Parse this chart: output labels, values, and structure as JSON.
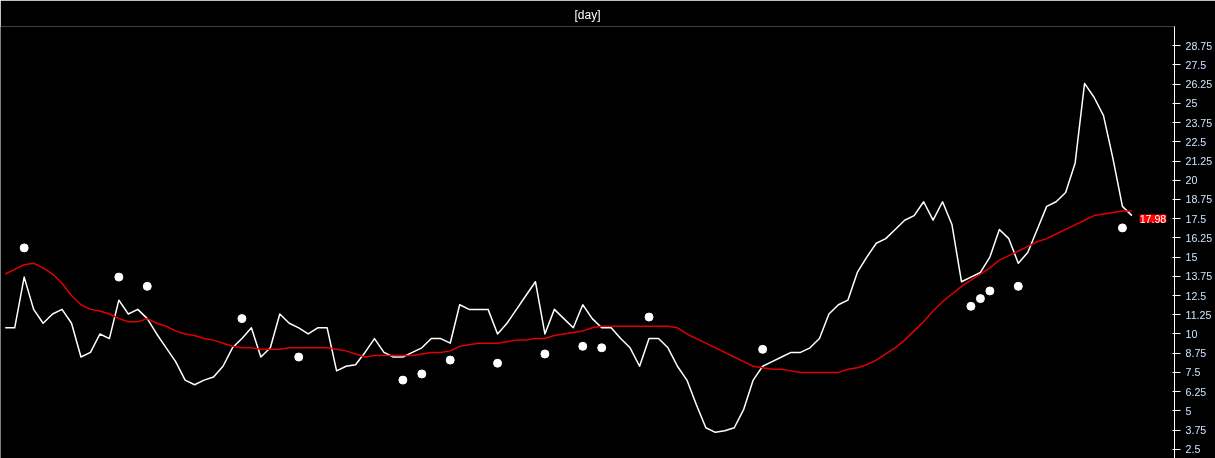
{
  "chart_data": {
    "type": "line",
    "title": "[day]",
    "categories": [
      null,
      null,
      null,
      null,
      null,
      null,
      null,
      null,
      null,
      null,
      null,
      null,
      null,
      null,
      null,
      null,
      null,
      null,
      null,
      null,
      null,
      null,
      null,
      null,
      null,
      null,
      null,
      null,
      null,
      null,
      null,
      null,
      null,
      null,
      null,
      null,
      null,
      null,
      null,
      null,
      null,
      null,
      null,
      null,
      null,
      null,
      null,
      null,
      null,
      null,
      null,
      null,
      null,
      null,
      null,
      null,
      null,
      null,
      null,
      null,
      null,
      null,
      null,
      null,
      null,
      null,
      null,
      null,
      null,
      null,
      null,
      null,
      null,
      null,
      null,
      null,
      null,
      null,
      null,
      null,
      null,
      null,
      null,
      null,
      null,
      null,
      null,
      null,
      null,
      null,
      null,
      null,
      null,
      null,
      null,
      null,
      null,
      null,
      null,
      null,
      null,
      null,
      null,
      null,
      null,
      null,
      null,
      null,
      null,
      null,
      null,
      null,
      null,
      null,
      null,
      null,
      null,
      null,
      null,
      null
    ],
    "series": [
      {
        "color": "#ffffff",
        "values": [
          10.4,
          10.4,
          13.7,
          11.6,
          10.7,
          11.3,
          11.6,
          10.7,
          8.5,
          8.8,
          10.0,
          9.7,
          12.2,
          11.3,
          11.6,
          11.0,
          10.0,
          9.1,
          8.2,
          7.0,
          6.7,
          7.0,
          7.2,
          7.9,
          9.1,
          9.7,
          10.4,
          8.5,
          9.1,
          11.3,
          10.7,
          10.4,
          10.0,
          10.4,
          10.4,
          7.6,
          7.9,
          8.0,
          8.8,
          9.7,
          8.8,
          8.5,
          8.5,
          8.8,
          9.1,
          9.7,
          9.7,
          9.4,
          11.9,
          11.6,
          11.6,
          11.6,
          10.0,
          10.7,
          11.6,
          12.5,
          13.4,
          10.0,
          11.6,
          11.0,
          10.4,
          11.9,
          11.0,
          10.4,
          10.4,
          9.7,
          9.1,
          7.9,
          9.7,
          9.7,
          9.1,
          7.9,
          7.0,
          5.4,
          3.9,
          3.6,
          3.7,
          3.9,
          5.1,
          7.0,
          7.9,
          8.2,
          8.5,
          8.8,
          8.8,
          9.1,
          9.7,
          11.3,
          11.9,
          12.2,
          14.0,
          15.0,
          15.9,
          16.2,
          16.8,
          17.4,
          17.7,
          18.6,
          17.4,
          18.6,
          17.1,
          13.4,
          13.7,
          14.0,
          15.0,
          16.8,
          16.2,
          14.6,
          15.3,
          16.8,
          18.3,
          18.6,
          19.2,
          21.1,
          26.3,
          25.4,
          24.2,
          21.4,
          18.3,
          17.7
        ]
      },
      {
        "color": "#e00000",
        "values": [
          13.9,
          14.2,
          14.5,
          14.6,
          14.3,
          13.9,
          13.3,
          12.5,
          11.9,
          11.6,
          11.5,
          11.3,
          11.0,
          10.8,
          10.8,
          11.0,
          10.7,
          10.5,
          10.2,
          10.0,
          9.9,
          9.7,
          9.6,
          9.4,
          9.2,
          9.1,
          9.1,
          9.0,
          9.0,
          9.0,
          9.1,
          9.1,
          9.1,
          9.1,
          9.1,
          9.0,
          8.9,
          8.7,
          8.5,
          8.6,
          8.6,
          8.6,
          8.6,
          8.6,
          8.7,
          8.8,
          8.8,
          8.9,
          9.2,
          9.3,
          9.4,
          9.4,
          9.4,
          9.5,
          9.6,
          9.6,
          9.7,
          9.7,
          9.9,
          10.0,
          10.1,
          10.2,
          10.4,
          10.5,
          10.5,
          10.5,
          10.5,
          10.5,
          10.5,
          10.5,
          10.5,
          10.4,
          10.0,
          9.7,
          9.4,
          9.1,
          8.8,
          8.5,
          8.2,
          7.9,
          7.8,
          7.7,
          7.7,
          7.6,
          7.5,
          7.5,
          7.5,
          7.5,
          7.5,
          7.7,
          7.8,
          8.0,
          8.3,
          8.7,
          9.1,
          9.6,
          10.2,
          10.8,
          11.5,
          12.1,
          12.6,
          13.1,
          13.5,
          13.9,
          14.3,
          14.8,
          15.1,
          15.4,
          15.7,
          16.0,
          16.2,
          16.5,
          16.8,
          17.1,
          17.4,
          17.7,
          17.8,
          17.9,
          18.0,
          18.0
        ]
      },
      {
        "type": "scatter",
        "marker": "circle",
        "color": "#ffffff",
        "values": [
          null,
          null,
          15.6,
          null,
          null,
          null,
          null,
          null,
          null,
          null,
          null,
          null,
          13.7,
          null,
          null,
          13.1,
          null,
          null,
          null,
          null,
          null,
          null,
          null,
          null,
          null,
          11.0,
          null,
          null,
          null,
          null,
          null,
          8.5,
          null,
          null,
          null,
          null,
          null,
          null,
          null,
          null,
          null,
          null,
          7.0,
          null,
          7.4,
          null,
          null,
          8.3,
          null,
          null,
          null,
          null,
          8.1,
          null,
          null,
          null,
          null,
          8.7,
          null,
          null,
          null,
          9.2,
          null,
          9.1,
          null,
          null,
          null,
          null,
          11.1,
          null,
          null,
          null,
          null,
          null,
          null,
          null,
          null,
          null,
          null,
          null,
          9.0,
          null,
          null,
          null,
          null,
          null,
          null,
          null,
          null,
          null,
          null,
          null,
          null,
          null,
          null,
          null,
          null,
          null,
          null,
          null,
          null,
          null,
          11.8,
          12.3,
          12.8,
          null,
          null,
          13.1,
          null,
          null,
          null,
          null,
          null,
          null,
          null,
          null,
          null,
          null,
          16.9,
          null
        ]
      }
    ],
    "ylim": [
      1.9,
      30.0
    ],
    "yticks": [
      2.5,
      3.75,
      5,
      6.25,
      7.5,
      8.75,
      10,
      11.25,
      12.5,
      13.75,
      15,
      16.25,
      17.5,
      18.75,
      20,
      21.25,
      22.5,
      23.75,
      25,
      26.25,
      27.5,
      28.75
    ],
    "tick_labels": "y",
    "annotations": [
      "17.98"
    ]
  }
}
